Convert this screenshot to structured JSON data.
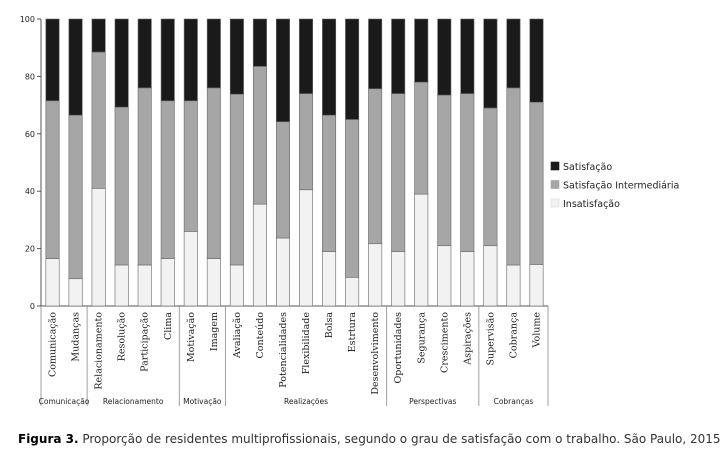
{
  "chart_data": {
    "type": "bar",
    "stacked": true,
    "ylim": [
      0,
      100
    ],
    "yticks": [
      0,
      20,
      40,
      60,
      80,
      100
    ],
    "categories": [
      "Comunicação",
      "Mudanças",
      "Relacionamento",
      "Resolução",
      "Participação",
      "Clima",
      "Motivação",
      "Imagem",
      "Avaliação",
      "Conteúdo",
      "Potencialidades",
      "Flexibilidade",
      "Bolsa",
      "Estrtura",
      "Desenvolvimento",
      "Oportunidades",
      "Segurança",
      "Crescimento",
      "Aspirações",
      "Supervisão",
      "Cobrança",
      "Volume"
    ],
    "groups": [
      {
        "label": "Comunicação",
        "count": 2
      },
      {
        "label": "Relacionamento",
        "count": 4
      },
      {
        "label": "Motivação",
        "count": 2
      },
      {
        "label": "Realizações",
        "count": 7
      },
      {
        "label": "Perspectivas",
        "count": 4
      },
      {
        "label": "Cobranças",
        "count": 3
      }
    ],
    "series": [
      {
        "name": "Insatisfação",
        "color": "#f2f2f2",
        "values": [
          16.5,
          9.5,
          41,
          14.3,
          14.3,
          16.5,
          26,
          16.5,
          14.3,
          35.5,
          23.7,
          40.5,
          19,
          10,
          21.7,
          19,
          39,
          21,
          19,
          21,
          14.3,
          14.5
        ]
      },
      {
        "name": "Satisfação Intermediária",
        "color": "#a6a6a6",
        "values": [
          55,
          57,
          47.5,
          55,
          61.7,
          55,
          45.5,
          59.5,
          59.5,
          48,
          40.5,
          33.5,
          47.5,
          55,
          54,
          55,
          39,
          52.5,
          55,
          48,
          61.7,
          56.5
        ]
      },
      {
        "name": "Satisfação",
        "color": "#1a1a1a",
        "values": [
          28.5,
          33.5,
          11.5,
          30.7,
          24,
          28.5,
          28.5,
          24,
          26.2,
          16.5,
          35.8,
          26,
          33.5,
          35,
          24.3,
          26,
          22,
          26.5,
          26,
          31,
          24,
          29
        ]
      }
    ],
    "legend": [
      "Satisfação",
      "Satisfação Intermediária",
      "Insatisfação"
    ],
    "legend_position": "right",
    "grid": false
  },
  "caption": {
    "label": "Figura 3.",
    "text": " Proporção de residentes multiprofissionais, segundo o grau de satisfação com o trabalho. São Paulo, 2015"
  }
}
